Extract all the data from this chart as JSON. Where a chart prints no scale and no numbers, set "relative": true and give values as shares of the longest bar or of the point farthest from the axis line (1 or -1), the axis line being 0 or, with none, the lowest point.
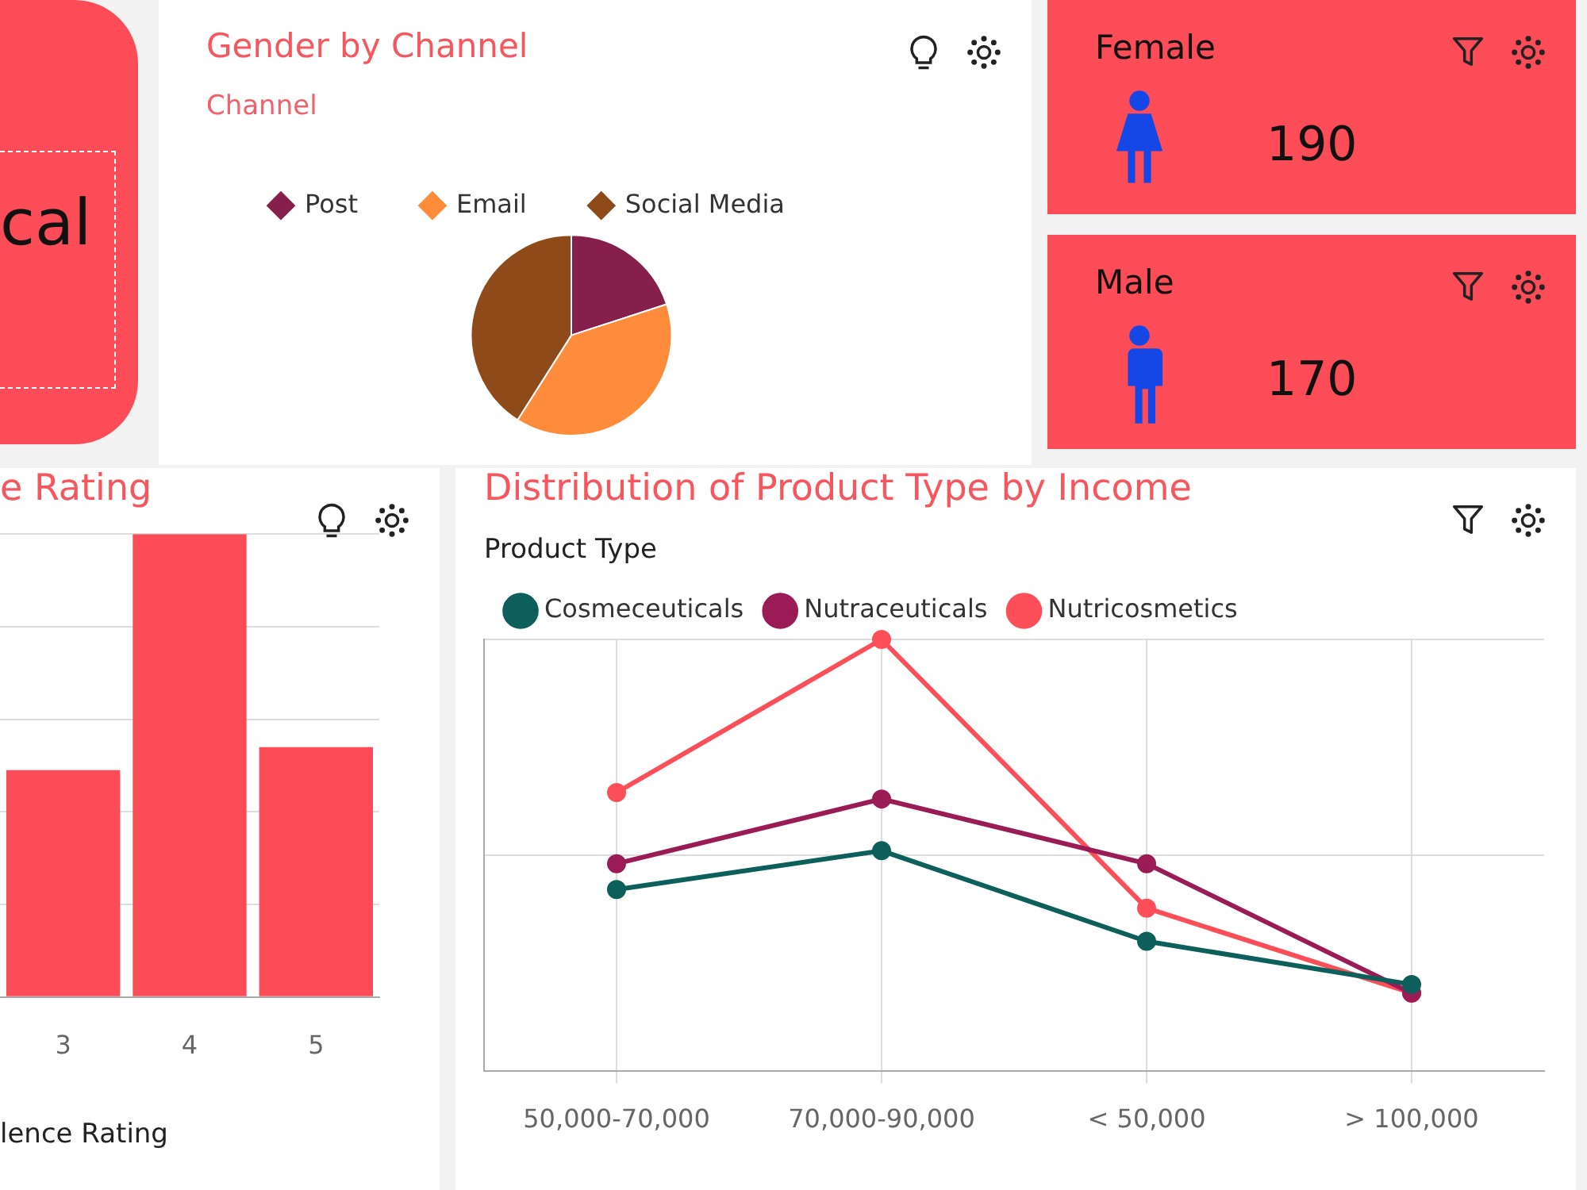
{
  "chart_data": [
    {
      "type": "other",
      "title": "cal"
    },
    {
      "type": "pie",
      "title": "Gender by Channel",
      "legend_title": "Channel",
      "legend": "top left",
      "categories": [
        "Post",
        "Email",
        "Social Media"
      ],
      "values": [
        20,
        39,
        41
      ],
      "colors": [
        "#861f4c",
        "#ff8c3a",
        "#8f4a1a"
      ]
    },
    {
      "type": "other",
      "title": "Female",
      "values": [
        190
      ],
      "data_labels": true
    },
    {
      "type": "other",
      "title": "Male",
      "values": [
        170
      ],
      "data_labels": true
    },
    {
      "type": "bar",
      "title": "e Rating",
      "xlabel": "lence Rating",
      "categories": [
        "3",
        "4",
        "5"
      ],
      "values": [
        0.49,
        1,
        0.54
      ],
      "color": "#fc4c57",
      "relative": true,
      "grid": "y",
      "legend": false
    },
    {
      "type": "line",
      "title": "Distribution of Product Type by Income",
      "legend_title": "Product Type",
      "legend": "top left",
      "categories": [
        "50,000-70,000",
        "70,000-90,000",
        "< 50,000",
        "> 100,000"
      ],
      "relative": true,
      "grid": true,
      "marker": "circle",
      "line_style": "solid",
      "series": [
        {
          "name": "Cosmeceuticals",
          "color": "#0c5f5a",
          "values": [
            0.42,
            0.51,
            0.3,
            0.2
          ]
        },
        {
          "name": "Nutraceuticals",
          "color": "#9b1b57",
          "values": [
            0.48,
            0.63,
            0.48,
            0.18
          ]
        },
        {
          "name": "Nutricosmetics",
          "color": "#fc4f5a",
          "values": [
            0.645,
            1,
            0.377,
            0.18
          ]
        }
      ]
    }
  ]
}
